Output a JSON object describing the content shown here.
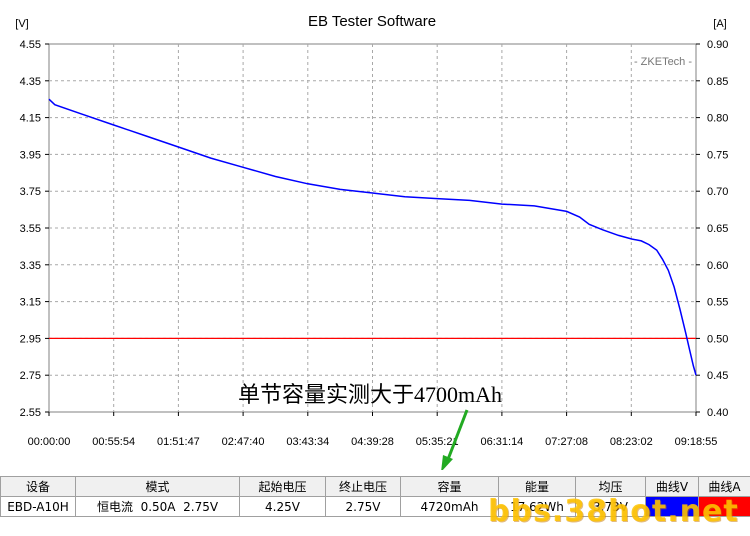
{
  "chart_data": {
    "type": "line",
    "title": "EB Tester Software",
    "left_unit": "[V]",
    "right_unit": "[A]",
    "watermark": "- ZKETech -",
    "annotation": "单节容量实测大于4700mAh",
    "y_left": {
      "ylim": [
        2.55,
        4.55
      ],
      "ticks": [
        "4.55",
        "4.35",
        "4.15",
        "3.95",
        "3.75",
        "3.55",
        "3.35",
        "3.15",
        "2.95",
        "2.75",
        "2.55"
      ]
    },
    "y_right": {
      "ylim": [
        0.4,
        0.9
      ],
      "ticks": [
        "0.90",
        "0.85",
        "0.80",
        "0.75",
        "0.70",
        "0.65",
        "0.60",
        "0.55",
        "0.50",
        "0.45",
        "0.40"
      ]
    },
    "x_ticks": [
      "00:00:00",
      "00:55:54",
      "01:51:47",
      "02:47:40",
      "03:43:34",
      "04:39:28",
      "05:35:21",
      "06:31:14",
      "07:27:08",
      "08:23:02",
      "09:18:55"
    ],
    "x_seconds_max": 33535,
    "grid": true,
    "series": [
      {
        "axis": "left",
        "color": "#0000ff",
        "x": [
          0,
          300,
          1677,
          3354,
          5031,
          6708,
          8385,
          10062,
          11739,
          13416,
          15093,
          16770,
          18447,
          20124,
          21801,
          23478,
          25155,
          26832,
          27500,
          28000,
          28700,
          29516,
          30200,
          30700,
          31100,
          31500,
          31800,
          32100,
          32400,
          32700,
          33000,
          33200,
          33400,
          33535
        ],
        "values": [
          4.25,
          4.22,
          4.17,
          4.11,
          4.05,
          3.99,
          3.93,
          3.88,
          3.83,
          3.79,
          3.76,
          3.74,
          3.72,
          3.71,
          3.7,
          3.68,
          3.67,
          3.64,
          3.61,
          3.57,
          3.54,
          3.51,
          3.49,
          3.48,
          3.46,
          3.43,
          3.38,
          3.32,
          3.23,
          3.11,
          2.98,
          2.89,
          2.8,
          2.75
        ]
      },
      {
        "axis": "right",
        "color": "#ff0000",
        "x": [
          0,
          33535
        ],
        "values": [
          0.5,
          0.5
        ]
      }
    ]
  },
  "table": {
    "headers": [
      "设备",
      "模式",
      "起始电压",
      "终止电压",
      "容量",
      "能量",
      "均压",
      "曲线V",
      "曲线A"
    ],
    "row": [
      "EBD-A10H",
      "恒电流  0.50A  2.75V",
      "4.25V",
      "2.75V",
      "4720mAh",
      "17.62Wh",
      "3.73V",
      "",
      ""
    ],
    "swatch_v_color": "#0000ff",
    "swatch_a_color": "#ff0000"
  },
  "site_watermark": "bbs.38hot.net"
}
